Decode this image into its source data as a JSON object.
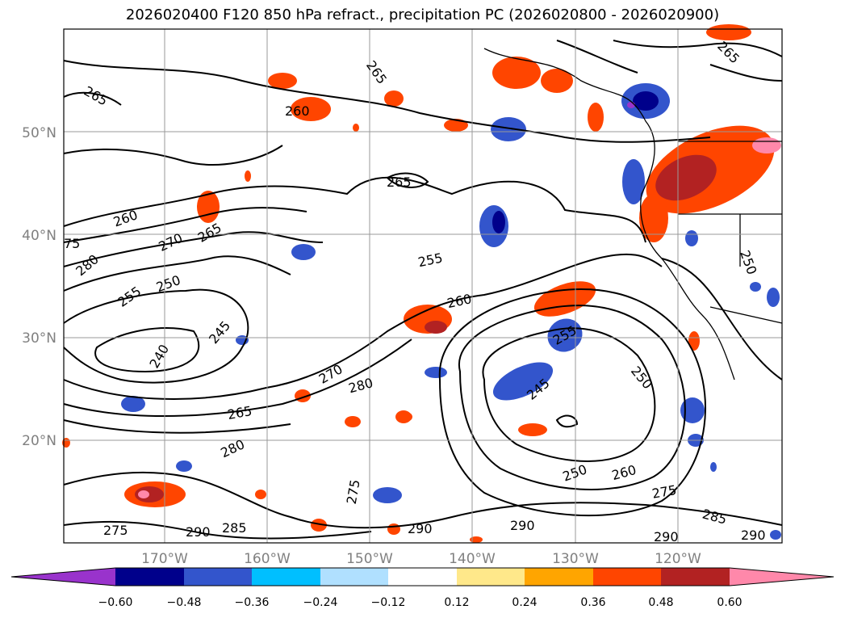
{
  "title": "2026020400 F120 850 hPa refract., precipitation PC (2026020800 - 2026020900)",
  "map": {
    "lat_labels": [
      "50°N",
      "40°N",
      "30°N",
      "20°N"
    ],
    "lon_labels": [
      "170°W",
      "160°W",
      "150°W",
      "140°W",
      "130°W",
      "120°W"
    ],
    "contour_labels": [
      "265",
      "265",
      "260",
      "265",
      "265",
      "260",
      "270",
      "265",
      "280",
      "255",
      "250",
      "255",
      "260",
      "240",
      "245",
      "270",
      "280",
      "265",
      "280",
      "245",
      "255",
      "250",
      "250",
      "260",
      "275",
      "275",
      "290",
      "285",
      "275",
      "290",
      "290",
      "285",
      "290",
      "290",
      "250",
      "75"
    ],
    "grid": true
  },
  "colorbar": {
    "ticks": [
      "−0.60",
      "−0.48",
      "−0.36",
      "−0.24",
      "−0.12",
      "0.12",
      "0.24",
      "0.36",
      "0.48",
      "0.60"
    ],
    "colors": [
      "#9933cc",
      "#00008b",
      "#3355cc",
      "#00bfff",
      "#b0e0ff",
      "#ffffff",
      "#ffe88a",
      "#ffa500",
      "#ff4500",
      "#b22222",
      "#ff88aa"
    ]
  }
}
